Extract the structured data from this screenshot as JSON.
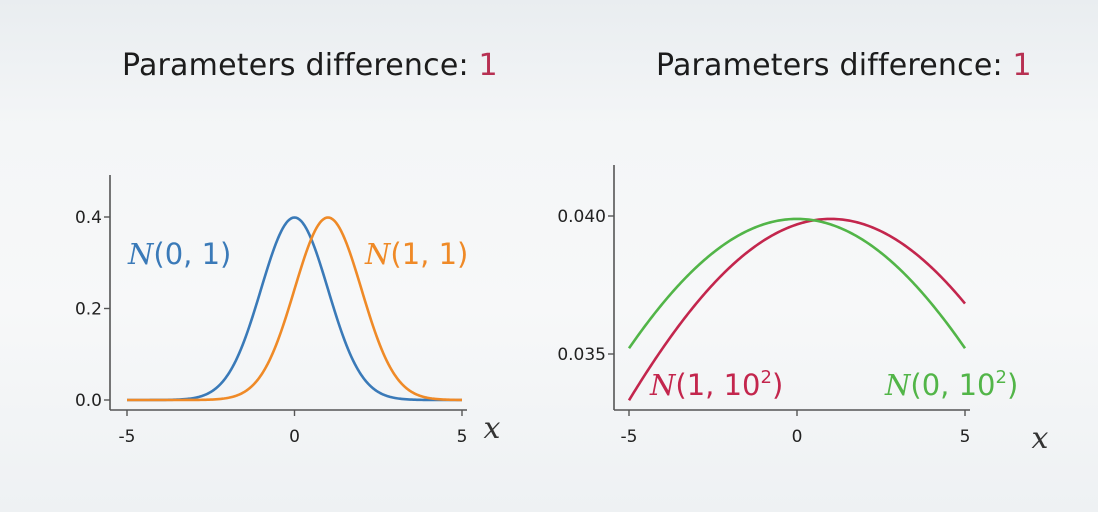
{
  "titles": [
    {
      "prefix": "Parameters difference: ",
      "value": "1"
    },
    {
      "prefix": "Parameters difference: ",
      "value": "1"
    }
  ],
  "colors": {
    "blue": "#3a7ab8",
    "orange": "#ef8a27",
    "crimson": "#c3264d",
    "green": "#52b548",
    "highlight": "#b73052"
  },
  "chart_data": [
    {
      "type": "line",
      "xlabel": "x",
      "xlim": [
        -5,
        5
      ],
      "ylim": [
        0,
        0.5
      ],
      "xticks": [
        -5,
        0,
        5
      ],
      "yticks": [
        0.0,
        0.2,
        0.4
      ],
      "xtick_labels": [
        "-5",
        "0",
        "5"
      ],
      "ytick_labels": [
        "0.0",
        "0.2",
        "0.4"
      ],
      "grid": false,
      "series": [
        {
          "name": "N(0, 1)",
          "label_main": "N",
          "label_args": "(0, 1)",
          "label_sup": "",
          "label_close": "",
          "mu": 0,
          "sigma": 1,
          "color": "#3a7ab8"
        },
        {
          "name": "N(1, 1)",
          "label_main": "N",
          "label_args": "(1, 1)",
          "label_sup": "",
          "label_close": "",
          "mu": 1,
          "sigma": 1,
          "color": "#ef8a27"
        }
      ]
    },
    {
      "type": "line",
      "xlabel": "x",
      "xlim": [
        -5,
        5
      ],
      "ylim": [
        0.0335,
        0.0418
      ],
      "xticks": [
        -5,
        0,
        5
      ],
      "yticks": [
        0.035,
        0.04
      ],
      "xtick_labels": [
        "-5",
        "0",
        "5"
      ],
      "ytick_labels": [
        "0.035",
        "0.040"
      ],
      "grid": false,
      "series": [
        {
          "name": "N(1, 10^2)",
          "label_main": "N",
          "label_args": "(1, 10",
          "label_sup": "2",
          "label_close": ")",
          "mu": 1,
          "sigma": 10,
          "color": "#c3264d"
        },
        {
          "name": "N(0, 10^2)",
          "label_main": "N",
          "label_args": "(0, 10",
          "label_sup": "2",
          "label_close": ")",
          "mu": 0,
          "sigma": 10,
          "color": "#52b548"
        }
      ]
    }
  ]
}
